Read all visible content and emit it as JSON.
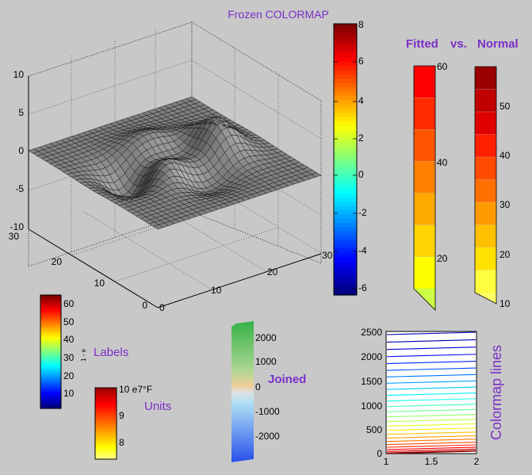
{
  "chart_data": [
    {
      "type": "surface",
      "title": "Frozen COLORMAP",
      "zticks": [
        "10",
        "5",
        "0",
        "-5",
        "-10"
      ],
      "xticks": [
        "0",
        "10",
        "20",
        "30"
      ],
      "yticks": [
        "30",
        "20",
        "10",
        "0"
      ],
      "zlim": [
        -10,
        10
      ],
      "xlim": [
        0,
        30
      ],
      "ylim": [
        0,
        30
      ],
      "surface_color": "#808080",
      "grid": true
    },
    {
      "type": "colorbar",
      "colormap": "jet",
      "ticks": [
        "8",
        "6",
        "4",
        "2",
        "0",
        "-2",
        "-4",
        "-6"
      ],
      "range": [
        -6.5,
        8
      ]
    },
    {
      "type": "colorbar",
      "colormap": "autumn-binned",
      "title": "Fitted",
      "title_joiner": "vs.",
      "ticks": [
        "60",
        "40",
        "20"
      ],
      "range": [
        10,
        60
      ],
      "bins": 7,
      "colors": [
        "#ff0000",
        "#ff2a00",
        "#ff5500",
        "#ff8000",
        "#ffaa00",
        "#ffd400",
        "#ffff00"
      ],
      "triangle_color": "#ccff44"
    },
    {
      "type": "colorbar",
      "colormap": "hot-binned",
      "title": "Normal",
      "ticks": [
        "50",
        "40",
        "30",
        "20",
        "10"
      ],
      "range": [
        10,
        60
      ],
      "colors": [
        "#9a0000",
        "#c00000",
        "#e00000",
        "#ff2000",
        "#ff4a00",
        "#ff7000",
        "#ff9a00",
        "#ffc000",
        "#ffe200",
        "#ffff40"
      ],
      "triangle_color": "#ffff66"
    },
    {
      "type": "colorbar",
      "colormap": "jet",
      "label": "Labels",
      "side_label": "1 - e",
      "ticks": [
        "60",
        "50",
        "40",
        "30",
        "20",
        "10"
      ],
      "range": [
        4,
        66
      ]
    },
    {
      "type": "colorbar",
      "colormap": "hot",
      "label": "Units",
      "ticks": [
        "10 e7°F",
        "9",
        "8"
      ],
      "range": [
        7.5,
        10
      ]
    },
    {
      "type": "colorbar",
      "colormap": "diverging",
      "label": "Joined",
      "ticks": [
        "2000",
        "1000",
        "0",
        "-1000",
        "-2000"
      ],
      "range": [
        -2600,
        2600
      ]
    },
    {
      "type": "contour",
      "title": "Colormap lines",
      "xticks": [
        "1",
        "1.5",
        "2"
      ],
      "yticks": [
        "2500",
        "2000",
        "1500",
        "1000",
        "500",
        "0"
      ],
      "xlim": [
        1,
        2
      ],
      "ylim": [
        0,
        2500
      ],
      "levels": 26
    }
  ]
}
